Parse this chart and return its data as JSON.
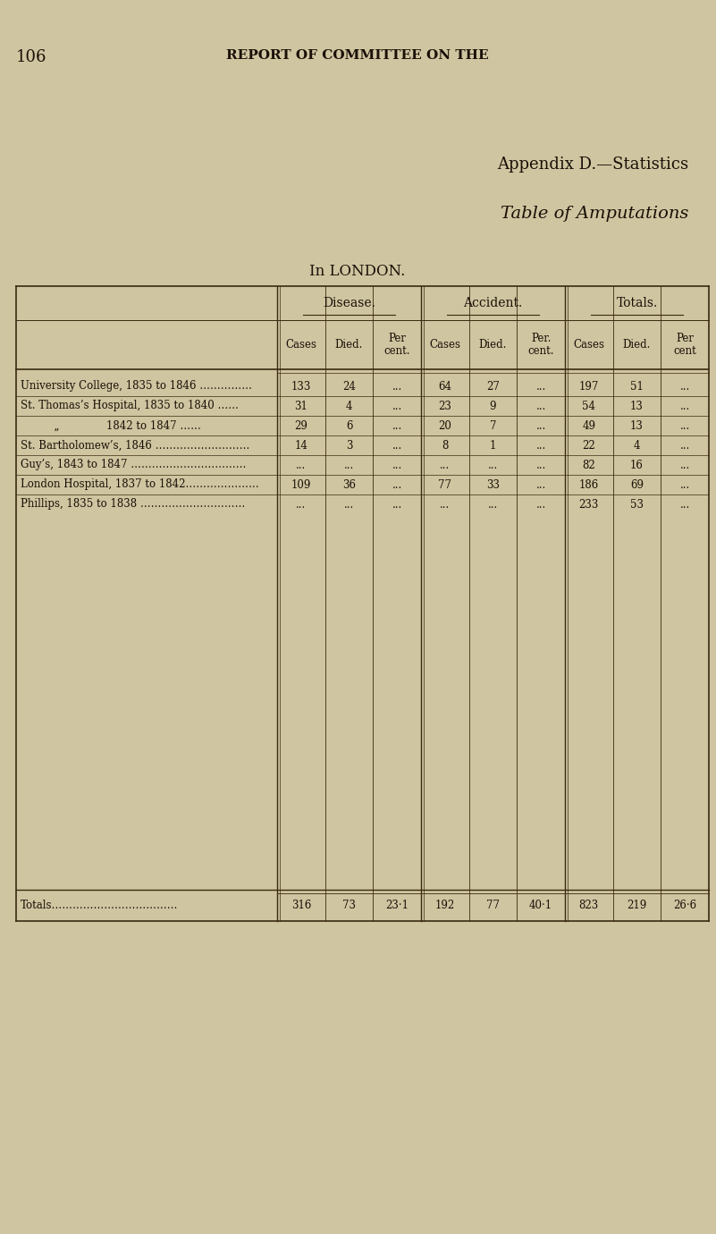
{
  "page_number": "106",
  "page_header": "REPORT OF COMMITTEE ON THE",
  "appendix_title": "Appendix D.—Statistics",
  "table_title": "Table of Amputations",
  "location_subtitle": "In LONDON.",
  "bg_color": "#cfc5a0",
  "text_color": "#1a1008",
  "line_color": "#3a2a10",
  "col_headers_level1": [
    "Disease.",
    "Accident.",
    "Totals."
  ],
  "sub_labels": [
    "Cases",
    "Died.",
    "Per\ncent.",
    "Cases",
    "Died.",
    "Per.\ncent.",
    "Cases",
    "Died.",
    "Per\ncent"
  ],
  "rows": [
    {
      "label": "University College, 1835 to 1846 ……………",
      "cells": [
        "133",
        "24",
        "...",
        "64",
        "27",
        "...",
        "197",
        "51",
        "..."
      ]
    },
    {
      "label": "St. Thomas’s Hospital, 1835 to 1840 ……",
      "cells": [
        "31",
        "4",
        "...",
        "23",
        "9",
        "...",
        "54",
        "13",
        "..."
      ]
    },
    {
      "label": "          „              1842 to 1847 ……",
      "cells": [
        "29",
        "6",
        "...",
        "20",
        "7",
        "...",
        "49",
        "13",
        "..."
      ]
    },
    {
      "label": "St. Bartholomew’s, 1846 ………………………",
      "cells": [
        "14",
        "3",
        "...",
        "8",
        "1",
        "...",
        "22",
        "4",
        "..."
      ]
    },
    {
      "label": "Guy’s, 1843 to 1847 ……………………………",
      "cells": [
        "...",
        "...",
        "...",
        "...",
        "...",
        "...",
        "82",
        "16",
        "..."
      ]
    },
    {
      "label": "London Hospital, 1837 to 1842…………………",
      "cells": [
        "109",
        "36",
        "...",
        "77",
        "33",
        "...",
        "186",
        "69",
        "..."
      ]
    },
    {
      "label": "Phillips, 1835 to 1838 …………………………",
      "cells": [
        "...",
        "...",
        "...",
        "...",
        "...",
        "...",
        "233",
        "53",
        "..."
      ]
    }
  ],
  "totals_row": {
    "label": "Totals………………………………",
    "cells": [
      "316",
      "73",
      "23·1",
      "192",
      "77",
      "40·1",
      "823",
      "219",
      "26·6"
    ]
  }
}
